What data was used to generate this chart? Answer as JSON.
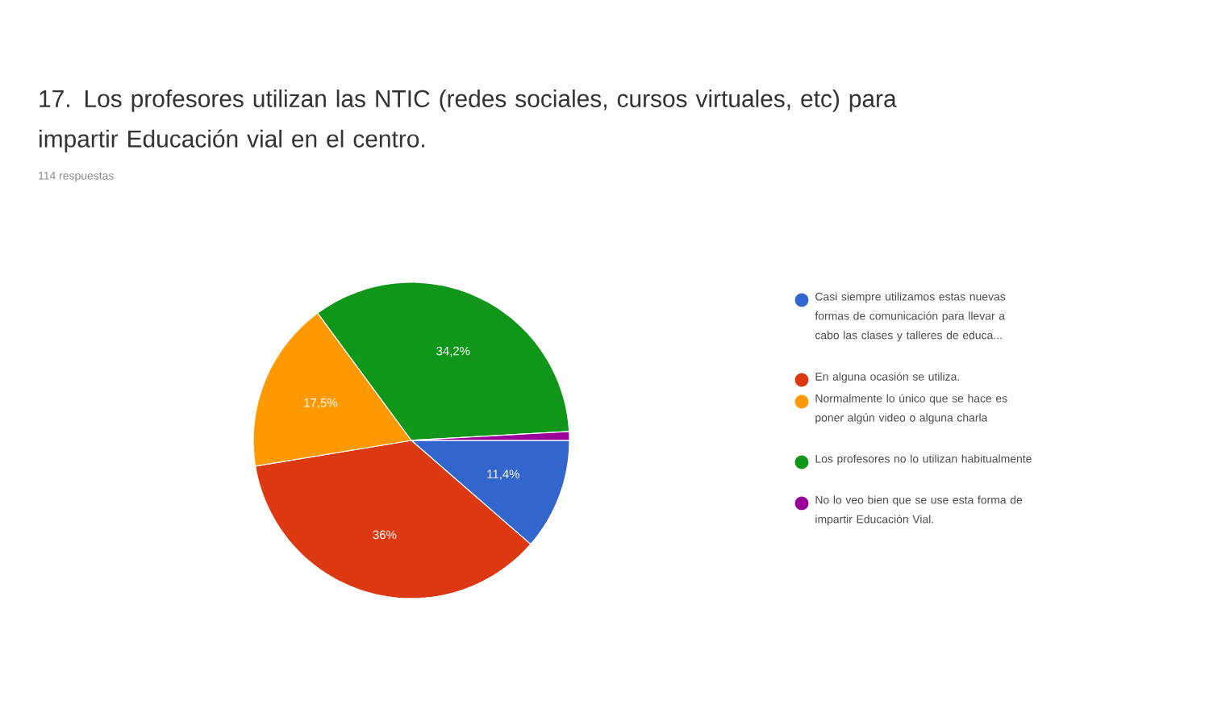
{
  "chart_data": {
    "type": "pie",
    "title": "17. Los profesores utilizan las NTIC (redes sociales, cursos virtuales, etc) para impartir Educación vial en el centro.",
    "subtitle": "114 respuestas",
    "categories": [
      "Casi siempre utilizamos estas nuevas formas de comunicación para llevar a cabo las clases y talleres de educa...",
      "En alguna ocasión se utiliza.",
      "Normalmente lo único que se hace es poner algún video o alguna charla",
      "Los profesores no lo utilizan habitualmente",
      "No lo veo bien que se use esta forma de impartir Educación Vial."
    ],
    "values": [
      11.4,
      36,
      17.5,
      34.2,
      0.9
    ],
    "value_labels": [
      "11,4%",
      "36%",
      "17,5%",
      "34,2%",
      null
    ],
    "colors": [
      "#3366cc",
      "#dc3912",
      "#ff9900",
      "#109618",
      "#990099"
    ],
    "legend": "right"
  }
}
